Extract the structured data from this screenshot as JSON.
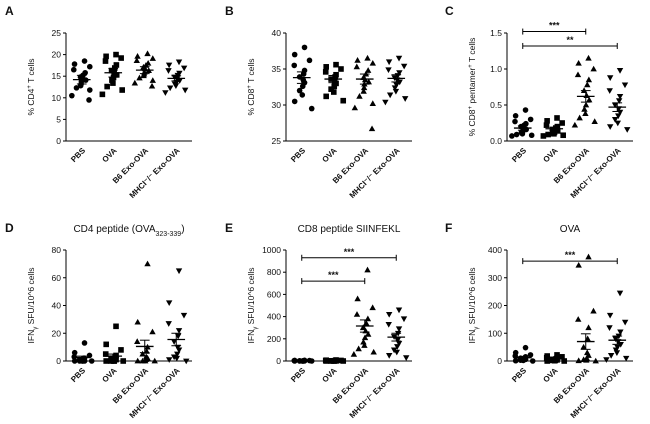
{
  "figure": {
    "panel_count": 6,
    "colors": {
      "ink": "#000000",
      "background": "#ffffff"
    }
  },
  "chart_data": [
    {
      "panel": "A",
      "type": "scatter",
      "title": "",
      "xlabel": "",
      "ylabel_parts": [
        [
          "% CD4",
          ""
        ],
        [
          "+",
          "sup"
        ],
        [
          " T cells",
          ""
        ]
      ],
      "ylim": [
        0,
        25
      ],
      "yticks": [
        0,
        5,
        10,
        15,
        20,
        25
      ],
      "ytick_labels": [
        "0",
        "5",
        "10",
        "15",
        "20",
        "25"
      ],
      "categories": [
        "PBS",
        "OVA",
        "B6 Exo-OVA",
        "MHCI⁻/⁻ Exo-OVA"
      ],
      "markers": [
        "circle",
        "square",
        "triangle-up",
        "triangle-down"
      ],
      "series": [
        {
          "name": "PBS",
          "mean": 14.2,
          "sem": 1.0,
          "values": [
            18.5,
            17.8,
            17.2,
            16.5,
            15.8,
            15.2,
            14.8,
            14.4,
            14.1,
            13.8,
            13.2,
            12.8,
            12.3,
            11.8,
            10.5,
            9.5
          ]
        },
        {
          "name": "OVA",
          "mean": 15.8,
          "sem": 1.0,
          "values": [
            20.0,
            19.6,
            19.2,
            18.5,
            17.6,
            16.9,
            16.3,
            15.8,
            15.3,
            14.7,
            14.1,
            13.4,
            12.6,
            11.8,
            10.8
          ]
        },
        {
          "name": "B6 Exo-OVA",
          "mean": 16.4,
          "sem": 0.8,
          "values": [
            20.2,
            19.6,
            19.1,
            18.6,
            18.0,
            17.5,
            17.1,
            16.7,
            16.3,
            15.9,
            15.5,
            15.1,
            14.6,
            14.0,
            13.4,
            12.7
          ]
        },
        {
          "name": "MHCI⁻/⁻ Exo-OVA",
          "mean": 14.5,
          "sem": 0.6,
          "values": [
            18.3,
            17.6,
            16.9,
            16.3,
            15.7,
            15.2,
            14.8,
            14.4,
            14.0,
            13.6,
            13.2,
            12.8,
            12.3,
            11.8,
            11.2
          ]
        }
      ],
      "significance": []
    },
    {
      "panel": "B",
      "type": "scatter",
      "title": "",
      "xlabel": "",
      "ylabel_parts": [
        [
          "% CD8",
          ""
        ],
        [
          "+",
          "sup"
        ],
        [
          " T cells",
          ""
        ]
      ],
      "ylim": [
        25,
        40
      ],
      "yticks": [
        25,
        30,
        35,
        40
      ],
      "ytick_labels": [
        "25",
        "30",
        "35",
        "40"
      ],
      "categories": [
        "PBS",
        "OVA",
        "B6 Exo-OVA",
        "MHCI⁻/⁻ Exo-OVA"
      ],
      "markers": [
        "circle",
        "square",
        "triangle-up",
        "triangle-down"
      ],
      "series": [
        {
          "name": "PBS",
          "mean": 33.8,
          "sem": 0.8,
          "values": [
            38.0,
            37.0,
            36.2,
            35.5,
            34.8,
            34.3,
            33.9,
            33.5,
            33.1,
            32.6,
            32.0,
            31.4,
            30.5,
            29.5
          ]
        },
        {
          "name": "OVA",
          "mean": 33.6,
          "sem": 0.5,
          "values": [
            35.6,
            35.3,
            35.0,
            34.6,
            34.2,
            33.9,
            33.6,
            33.3,
            33.0,
            32.6,
            32.2,
            31.8,
            31.2,
            30.6
          ]
        },
        {
          "name": "B6 Exo-OVA",
          "mean": 33.6,
          "sem": 0.7,
          "values": [
            36.5,
            36.2,
            35.8,
            35.3,
            34.8,
            34.3,
            33.8,
            33.5,
            33.2,
            32.9,
            32.4,
            31.9,
            31.2,
            30.2,
            29.6,
            26.7
          ]
        },
        {
          "name": "MHCI⁻/⁻ Exo-OVA",
          "mean": 33.7,
          "sem": 0.5,
          "values": [
            36.5,
            36.0,
            35.4,
            34.9,
            34.5,
            34.1,
            33.8,
            33.5,
            33.2,
            32.8,
            32.4,
            31.9,
            31.4,
            30.9,
            30.4
          ]
        }
      ],
      "significance": []
    },
    {
      "panel": "C",
      "type": "scatter",
      "title": "",
      "xlabel": "",
      "ylabel_parts": [
        [
          "% CD8",
          ""
        ],
        [
          "+",
          "sup"
        ],
        [
          " pentamer",
          ""
        ],
        [
          "+",
          "sup"
        ],
        [
          " T cells",
          ""
        ]
      ],
      "ylim": [
        0,
        1.5
      ],
      "yticks": [
        0,
        0.5,
        1.0,
        1.5
      ],
      "ytick_labels": [
        "0.0",
        "0.5",
        "1.0",
        "1.5"
      ],
      "categories": [
        "PBS",
        "OVA",
        "B6 Exo-OVA",
        "MHCI⁻/⁻ Exo-OVA"
      ],
      "markers": [
        "circle",
        "square",
        "triangle-up",
        "triangle-down"
      ],
      "series": [
        {
          "name": "PBS",
          "mean": 0.18,
          "sem": 0.03,
          "values": [
            0.43,
            0.35,
            0.3,
            0.27,
            0.24,
            0.22,
            0.2,
            0.18,
            0.16,
            0.14,
            0.12,
            0.1,
            0.09,
            0.08,
            0.07
          ]
        },
        {
          "name": "OVA",
          "mean": 0.17,
          "sem": 0.02,
          "values": [
            0.32,
            0.28,
            0.25,
            0.22,
            0.2,
            0.18,
            0.16,
            0.15,
            0.14,
            0.12,
            0.11,
            0.1,
            0.09,
            0.08,
            0.07
          ]
        },
        {
          "name": "B6 Exo-OVA",
          "mean": 0.62,
          "sem": 0.08,
          "values": [
            1.15,
            1.08,
            1.0,
            0.92,
            0.85,
            0.78,
            0.7,
            0.63,
            0.57,
            0.5,
            0.44,
            0.38,
            0.32,
            0.27,
            0.22
          ]
        },
        {
          "name": "MHCI⁻/⁻ Exo-OVA",
          "mean": 0.47,
          "sem": 0.06,
          "values": [
            0.98,
            0.88,
            0.78,
            0.7,
            0.62,
            0.56,
            0.5,
            0.45,
            0.4,
            0.35,
            0.3,
            0.25,
            0.2,
            0.16
          ]
        }
      ],
      "significance": [
        {
          "from": 0,
          "to": 2,
          "label": "***",
          "y": 1.52
        },
        {
          "from": 0,
          "to": 3,
          "label": "**",
          "y": 1.32
        }
      ]
    },
    {
      "panel": "D",
      "type": "scatter",
      "title_parts": [
        [
          "CD4 peptide (OVA",
          ""
        ],
        [
          "323-339",
          "sub"
        ],
        [
          ")",
          ""
        ]
      ],
      "xlabel": "",
      "ylabel_parts": [
        [
          "IFN",
          ""
        ],
        [
          "γ",
          "sub"
        ],
        [
          " SFU/10^6 cells",
          ""
        ]
      ],
      "ylim": [
        0,
        80
      ],
      "yticks": [
        0,
        20,
        40,
        60,
        80
      ],
      "ytick_labels": [
        "0",
        "20",
        "40",
        "60",
        "80"
      ],
      "categories": [
        "PBS",
        "OVA",
        "B6 Exo-OVA",
        "MHCI⁻/⁻ Exo-OVA"
      ],
      "markers": [
        "circle",
        "square",
        "triangle-up",
        "triangle-down"
      ],
      "series": [
        {
          "name": "PBS",
          "mean": 2.5,
          "sem": 1.0,
          "values": [
            13,
            6,
            4,
            3,
            2,
            2,
            1,
            1,
            0,
            0,
            0,
            0,
            0,
            0
          ]
        },
        {
          "name": "OVA",
          "mean": 3.5,
          "sem": 1.5,
          "values": [
            25,
            12,
            8,
            5,
            4,
            3,
            2,
            1,
            1,
            0,
            0,
            0,
            0,
            0
          ]
        },
        {
          "name": "B6 Exo-OVA",
          "mean": 10.5,
          "sem": 4.5,
          "values": [
            70,
            28,
            21,
            14,
            10,
            7,
            5,
            3,
            2,
            1,
            0,
            0,
            0,
            0
          ]
        },
        {
          "name": "MHCI⁻/⁻ Exo-OVA",
          "mean": 15.5,
          "sem": 4.5,
          "values": [
            65,
            42,
            33,
            27,
            22,
            18,
            14,
            10,
            8,
            5,
            3,
            2,
            1,
            0
          ]
        }
      ],
      "significance": []
    },
    {
      "panel": "E",
      "type": "scatter",
      "title_parts": [
        [
          "CD8 peptide SIINFEKL",
          ""
        ]
      ],
      "xlabel": "",
      "ylabel_parts": [
        [
          "IFN",
          ""
        ],
        [
          "γ",
          "sub"
        ],
        [
          " SFU/10^6 cells",
          ""
        ]
      ],
      "ylim": [
        0,
        1000
      ],
      "yticks": [
        0,
        200,
        400,
        600,
        800,
        1000
      ],
      "ytick_labels": [
        "0",
        "200",
        "400",
        "600",
        "800",
        "1000"
      ],
      "categories": [
        "PBS",
        "OVA",
        "B6 Exo-OVA",
        "MHCI⁻/⁻ Exo-OVA"
      ],
      "markers": [
        "circle",
        "square",
        "triangle-up",
        "triangle-down"
      ],
      "series": [
        {
          "name": "PBS",
          "mean": 2,
          "sem": 1,
          "values": [
            6,
            5,
            4,
            3,
            3,
            2,
            2,
            1,
            1,
            0,
            0,
            0,
            0,
            0
          ]
        },
        {
          "name": "OVA",
          "mean": 3,
          "sem": 1,
          "values": [
            9,
            7,
            5,
            4,
            3,
            3,
            2,
            2,
            1,
            1,
            0,
            0,
            0,
            0
          ]
        },
        {
          "name": "B6 Exo-OVA",
          "mean": 315,
          "sem": 55,
          "values": [
            820,
            560,
            480,
            420,
            380,
            340,
            300,
            270,
            240,
            210,
            170,
            140,
            110,
            80,
            60
          ]
        },
        {
          "name": "MHCI⁻/⁻ Exo-OVA",
          "mean": 215,
          "sem": 35,
          "values": [
            460,
            420,
            380,
            330,
            290,
            250,
            220,
            190,
            160,
            130,
            100,
            80,
            50,
            30
          ]
        }
      ],
      "significance": [
        {
          "from": 0,
          "to": 3,
          "label": "***",
          "y": 930
        },
        {
          "from": 0,
          "to": 2,
          "label": "***",
          "y": 720
        }
      ]
    },
    {
      "panel": "F",
      "type": "scatter",
      "title_parts": [
        [
          "OVA",
          ""
        ]
      ],
      "xlabel": "",
      "ylabel_parts": [
        [
          "IFN",
          ""
        ],
        [
          "γ",
          "sub"
        ],
        [
          " SFU/10^6 cells",
          ""
        ]
      ],
      "ylim": [
        0,
        400
      ],
      "yticks": [
        0,
        100,
        200,
        300,
        400
      ],
      "ytick_labels": [
        "0",
        "100",
        "200",
        "300",
        "400"
      ],
      "categories": [
        "PBS",
        "OVA",
        "B6 Exo-OVA",
        "MHCI⁻/⁻ Exo-OVA"
      ],
      "markers": [
        "circle",
        "square",
        "triangle-up",
        "triangle-down"
      ],
      "series": [
        {
          "name": "PBS",
          "mean": 12,
          "sem": 3,
          "values": [
            48,
            30,
            22,
            18,
            15,
            12,
            10,
            8,
            6,
            4,
            3,
            2,
            1,
            0
          ]
        },
        {
          "name": "OVA",
          "mean": 8,
          "sem": 2,
          "values": [
            22,
            18,
            15,
            12,
            10,
            8,
            6,
            5,
            4,
            3,
            2,
            1,
            0,
            0
          ]
        },
        {
          "name": "B6 Exo-OVA",
          "mean": 70,
          "sem": 28,
          "values": [
            375,
            345,
            180,
            150,
            120,
            80,
            50,
            30,
            20,
            10,
            5,
            3,
            1,
            0
          ]
        },
        {
          "name": "MHCI⁻/⁻ Exo-OVA",
          "mean": 75,
          "sem": 15,
          "values": [
            245,
            165,
            140,
            120,
            105,
            90,
            80,
            70,
            60,
            50,
            40,
            30,
            20,
            10,
            5
          ]
        }
      ],
      "significance": [
        {
          "from": 0,
          "to": 3,
          "label": "***",
          "y": 360
        }
      ]
    }
  ]
}
